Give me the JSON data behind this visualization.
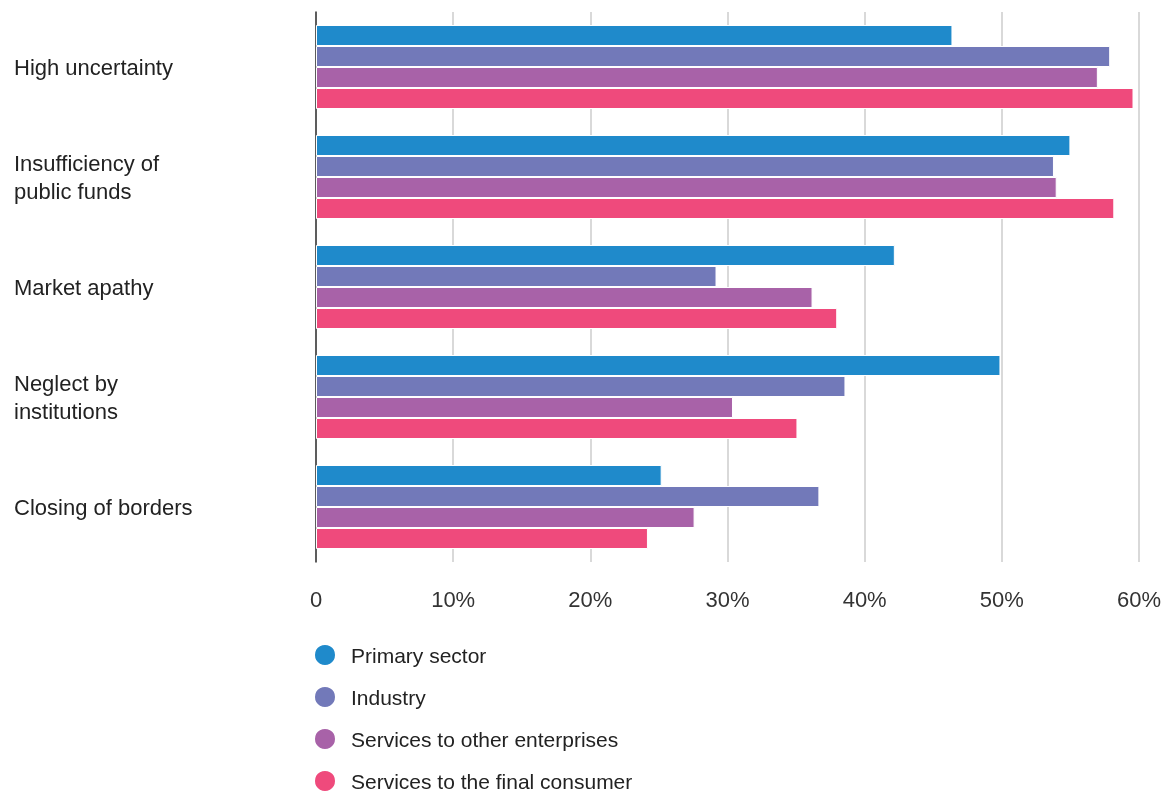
{
  "chart_data": {
    "type": "bar",
    "orientation": "horizontal",
    "categories": [
      "High uncertainty",
      "Insufficiency of public funds",
      "Market apathy",
      "Neglect by institutions",
      "Closing of borders"
    ],
    "series": [
      {
        "name": "Primary sector",
        "color": "#1f8acb",
        "values": [
          46.4,
          55.0,
          42.2,
          49.9,
          25.2
        ]
      },
      {
        "name": "Industry",
        "color": "#7279b9",
        "values": [
          57.9,
          53.8,
          29.2,
          38.6,
          36.7
        ]
      },
      {
        "name": "Services to other enterprises",
        "color": "#a862a8",
        "values": [
          57.0,
          54.0,
          36.2,
          30.4,
          27.6
        ]
      },
      {
        "name": "Services to the final consumer",
        "color": "#ef4a7c",
        "values": [
          59.6,
          58.2,
          38.0,
          35.1,
          24.2
        ]
      }
    ],
    "xlim": [
      0,
      60
    ],
    "xticks": [
      0,
      {
        "value": 10,
        "label": "10%"
      },
      {
        "value": 20,
        "label": "20%"
      },
      {
        "value": 30,
        "label": "30%"
      },
      {
        "value": 40,
        "label": "40%"
      },
      {
        "value": 50,
        "label": "50%"
      },
      {
        "value": 60,
        "label": "60%"
      }
    ],
    "grid": "x",
    "legend": "bottom"
  }
}
